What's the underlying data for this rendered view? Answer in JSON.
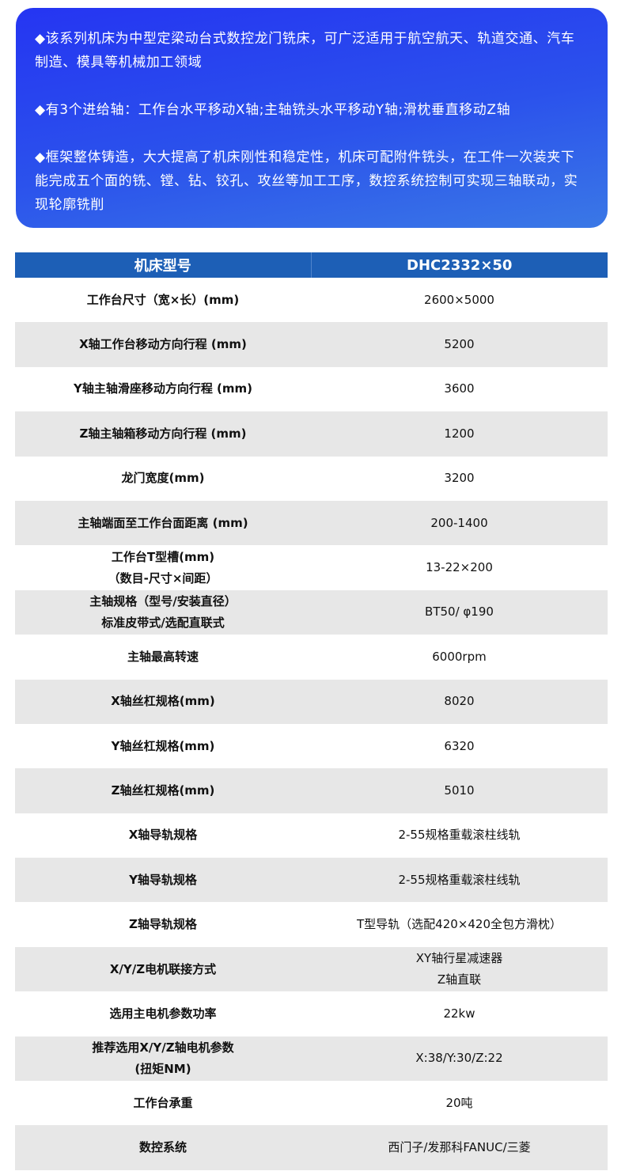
{
  "intro": {
    "paragraphs": [
      "◆该系列机床为中型定梁动台式数控龙门铣床，可广泛适用于航空航天、轨道交通、汽车制造、模具等机械加工领域",
      "◆有3个进给轴：工作台水平移动X轴;主轴铣头水平移动Y轴;滑枕垂直移动Z轴",
      "◆框架整体铸造，大大提高了机床刚性和稳定性，机床可配附件铣头，在工件一次装夹下能完成五个面的铣、镗、钻、铰孔、攻丝等加工工序，数控系统控制可实现三轴联动，实现轮廓铣削"
    ]
  },
  "table": {
    "header": [
      "机床型号",
      "DHC2332×50"
    ],
    "rows": [
      [
        "工作台尺寸（宽×长）(mm)",
        "2600×5000"
      ],
      [
        "X轴工作台移动方向行程 (mm)",
        "5200"
      ],
      [
        "Y轴主轴滑座移动方向行程 (mm)",
        "3600"
      ],
      [
        "Z轴主轴箱移动方向行程 (mm)",
        "1200"
      ],
      [
        "龙门宽度(mm)",
        "3200"
      ],
      [
        "主轴端面至工作台面距离 (mm)",
        "200-1400"
      ],
      [
        "工作台T型槽(mm)\n（数目-尺寸×间距）",
        "13-22×200"
      ],
      [
        "主轴规格（型号/安装直径）\n标准皮带式/选配直联式",
        "BT50/ φ190"
      ],
      [
        "主轴最高转速",
        "6000rpm"
      ],
      [
        "X轴丝杠规格(mm)",
        "8020"
      ],
      [
        "Y轴丝杠规格(mm)",
        "6320"
      ],
      [
        "Z轴丝杠规格(mm)",
        "5010"
      ],
      [
        "X轴导轨规格",
        "2-55规格重载滚柱线轨"
      ],
      [
        "Y轴导轨规格",
        "2-55规格重载滚柱线轨"
      ],
      [
        "Z轴导轨规格",
        "T型导轨（选配420×420全包方滑枕）"
      ],
      [
        "X/Y/Z电机联接方式",
        "XY轴行星减速器\nZ轴直联"
      ],
      [
        "选用主电机参数功率",
        "22kw"
      ],
      [
        "推荐选用X/Y/Z轴电机参数\n(扭矩NM)",
        "X:38/Y:30/Z:22"
      ],
      [
        "工作台承重",
        "20吨"
      ],
      [
        "数控系统",
        "西门子/发那科FANUC/三菱"
      ]
    ]
  }
}
